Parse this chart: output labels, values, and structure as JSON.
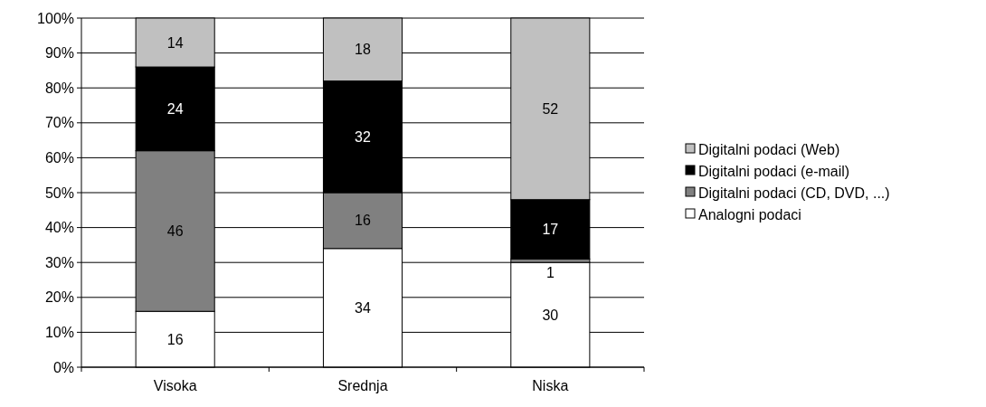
{
  "chart_data": {
    "type": "bar",
    "stacked": true,
    "categories": [
      "Visoka",
      "Srednja",
      "Niska"
    ],
    "series": [
      {
        "name": "Analogni podaci",
        "color": "#ffffff",
        "values": [
          16,
          34,
          30
        ]
      },
      {
        "name": "Digitalni podaci (CD, DVD, ...)",
        "color": "#808080",
        "values": [
          46,
          16,
          1
        ]
      },
      {
        "name": "Digitalni podaci (e-mail)",
        "color": "#000000",
        "values": [
          24,
          32,
          17
        ]
      },
      {
        "name": "Digitalni podaci (Web)",
        "color": "#c0c0c0",
        "values": [
          14,
          18,
          52
        ]
      }
    ],
    "ylim": [
      0,
      100
    ],
    "yticks": [
      {
        "value": 0,
        "label": "0%"
      },
      {
        "value": 10,
        "label": "10%"
      },
      {
        "value": 20,
        "label": "20%"
      },
      {
        "value": 30,
        "label": "30%"
      },
      {
        "value": 40,
        "label": "40%"
      },
      {
        "value": 50,
        "label": "50%"
      },
      {
        "value": 60,
        "label": "60%"
      },
      {
        "value": 70,
        "label": "70%"
      },
      {
        "value": 80,
        "label": "80%"
      },
      {
        "value": 90,
        "label": "90%"
      },
      {
        "value": 100,
        "label": "100%"
      }
    ],
    "grid": "y",
    "legend": "right",
    "data_labels": true
  }
}
